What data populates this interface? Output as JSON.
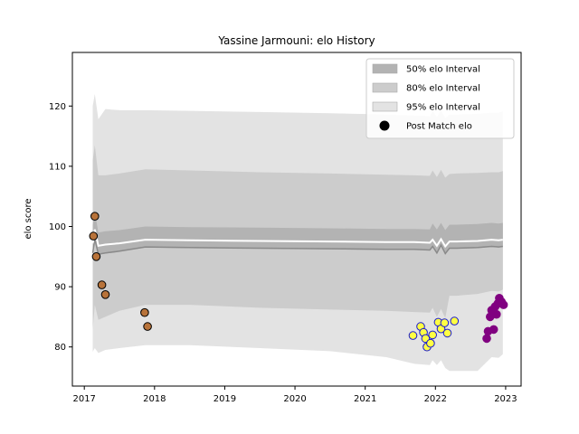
{
  "chart_data": {
    "type": "line",
    "title": "Yassine Jarmouni: elo History",
    "xlabel": "",
    "ylabel": "elo score",
    "xlim": [
      2016.83,
      2023.22
    ],
    "ylim": [
      73.5,
      128.9
    ],
    "x_ticks": [
      2017,
      2018,
      2019,
      2020,
      2021,
      2022,
      2023
    ],
    "x_tick_labels": [
      "2017",
      "2018",
      "2019",
      "2020",
      "2021",
      "2022",
      "2023"
    ],
    "y_ticks": [
      80,
      90,
      100,
      110,
      120
    ],
    "y_tick_labels": [
      "80",
      "90",
      "100",
      "110",
      "120"
    ],
    "grid": false,
    "legend_position": "top-right",
    "legend": [
      {
        "label": "50% elo Interval",
        "kind": "patch",
        "color": "#b3b3b3"
      },
      {
        "label": "80% elo Interval",
        "kind": "patch",
        "color": "#cccccc"
      },
      {
        "label": "95% elo Interval",
        "kind": "patch",
        "color": "#e3e3e3"
      },
      {
        "label": "Post Match elo",
        "kind": "marker",
        "color": "#000000"
      }
    ],
    "bands": {
      "x": [
        2017.12,
        2017.15,
        2017.2,
        2017.3,
        2017.5,
        2017.87,
        2018.5,
        2019.5,
        2020.5,
        2021.3,
        2021.7,
        2021.92,
        2021.96,
        2022.02,
        2022.08,
        2022.14,
        2022.2,
        2022.3,
        2022.6,
        2022.8,
        2022.9,
        2022.96
      ],
      "mean": [
        97.2,
        99.5,
        96.8,
        97.0,
        97.2,
        97.8,
        97.7,
        97.6,
        97.5,
        97.4,
        97.4,
        97.3,
        97.8,
        96.8,
        97.9,
        96.7,
        97.5,
        97.5,
        97.6,
        97.8,
        97.7,
        97.8
      ],
      "p50": [
        [
          95.5,
          100.2
        ],
        [
          97.8,
          102.5
        ],
        [
          95.3,
          99.0
        ],
        [
          95.5,
          99.2
        ],
        [
          95.8,
          99.4
        ],
        [
          96.5,
          100.0
        ],
        [
          96.4,
          99.9
        ],
        [
          96.3,
          99.8
        ],
        [
          96.2,
          99.7
        ],
        [
          96.1,
          99.6
        ],
        [
          96.1,
          99.6
        ],
        [
          96.0,
          99.5
        ],
        [
          96.6,
          100.5
        ],
        [
          95.5,
          99.5
        ],
        [
          96.8,
          100.6
        ],
        [
          95.4,
          99.4
        ],
        [
          96.3,
          100.3
        ],
        [
          96.3,
          100.3
        ],
        [
          96.4,
          100.4
        ],
        [
          96.6,
          100.6
        ],
        [
          96.5,
          100.5
        ],
        [
          96.6,
          100.6
        ]
      ],
      "p80": [
        [
          83.0,
          111.0
        ],
        [
          87.0,
          113.5
        ],
        [
          84.5,
          108.5
        ],
        [
          85.0,
          108.5
        ],
        [
          86.0,
          108.8
        ],
        [
          87.0,
          109.5
        ],
        [
          87.0,
          109.3
        ],
        [
          86.5,
          109.0
        ],
        [
          86.2,
          108.8
        ],
        [
          86.0,
          108.6
        ],
        [
          85.8,
          108.5
        ],
        [
          85.7,
          108.4
        ],
        [
          86.5,
          109.3
        ],
        [
          85.0,
          108.2
        ],
        [
          86.3,
          109.4
        ],
        [
          84.8,
          108.1
        ],
        [
          88.5,
          108.7
        ],
        [
          88.5,
          108.8
        ],
        [
          88.8,
          108.9
        ],
        [
          89.3,
          109.0
        ],
        [
          89.2,
          109.0
        ],
        [
          89.5,
          109.2
        ]
      ],
      "p95": [
        [
          79.2,
          120.0
        ],
        [
          79.8,
          122.0
        ],
        [
          79.0,
          117.8
        ],
        [
          79.5,
          119.5
        ],
        [
          79.8,
          119.3
        ],
        [
          80.3,
          119.3
        ],
        [
          80.3,
          119.2
        ],
        [
          79.8,
          119.0
        ],
        [
          79.3,
          118.8
        ],
        [
          78.3,
          118.6
        ],
        [
          77.2,
          118.4
        ],
        [
          77.0,
          118.3
        ],
        [
          77.8,
          119.2
        ],
        [
          77.0,
          118.2
        ],
        [
          77.8,
          119.3
        ],
        [
          76.5,
          118.0
        ],
        [
          76.0,
          118.6
        ],
        [
          76.0,
          118.6
        ],
        [
          76.0,
          118.7
        ],
        [
          78.3,
          118.9
        ],
        [
          78.2,
          118.9
        ],
        [
          78.8,
          119.1
        ]
      ]
    },
    "series": [
      {
        "name": "Post Match elo",
        "type": "scatter",
        "color": "#b8733a",
        "edge": "#000000",
        "points": [
          [
            2017.13,
            98.4
          ],
          [
            2017.15,
            101.7
          ],
          [
            2017.17,
            95.0
          ],
          [
            2017.25,
            90.3
          ],
          [
            2017.3,
            88.7
          ],
          [
            2017.86,
            85.7
          ],
          [
            2017.9,
            83.4
          ]
        ]
      },
      {
        "name": "",
        "type": "scatter",
        "color": "#ffff44",
        "edge": "#1a1ad0",
        "points": [
          [
            2021.68,
            81.9
          ],
          [
            2021.79,
            83.4
          ],
          [
            2021.83,
            82.4
          ],
          [
            2021.86,
            81.4
          ],
          [
            2021.88,
            80.0
          ],
          [
            2021.93,
            80.6
          ],
          [
            2021.96,
            82.0
          ],
          [
            2022.04,
            84.1
          ],
          [
            2022.08,
            83.0
          ],
          [
            2022.13,
            84.0
          ],
          [
            2022.17,
            82.3
          ],
          [
            2022.27,
            84.3
          ]
        ]
      },
      {
        "name": "",
        "type": "scatter",
        "color": "#800080",
        "edge": "#800080",
        "points": [
          [
            2022.73,
            81.4
          ],
          [
            2022.75,
            82.6
          ],
          [
            2022.78,
            85.0
          ],
          [
            2022.8,
            86.1
          ],
          [
            2022.83,
            82.9
          ],
          [
            2022.85,
            86.7
          ],
          [
            2022.87,
            85.4
          ],
          [
            2022.89,
            87.2
          ],
          [
            2022.91,
            88.1
          ],
          [
            2022.94,
            87.5
          ],
          [
            2022.97,
            87.0
          ]
        ]
      }
    ]
  }
}
